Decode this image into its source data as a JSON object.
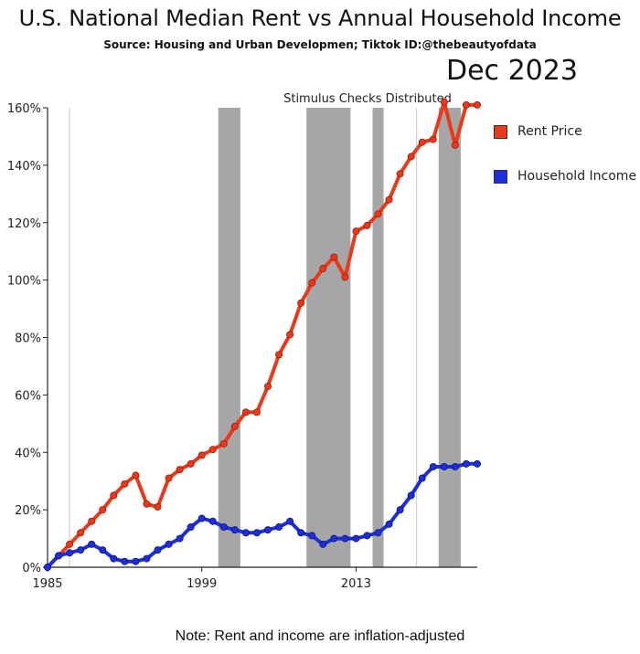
{
  "chart_data": {
    "type": "line",
    "title": "U.S. National Median Rent vs Annual Household Income",
    "subtitle": "Source: Housing and Urban Developmen;  Tiktok ID:@thebeautyofdata",
    "date_label": "Dec 2023",
    "annotation": "Stimulus Checks Distributed",
    "note": "Note: Rent and income are inflation-adjusted",
    "xlim": [
      1985,
      2024
    ],
    "ylim": [
      0,
      160
    ],
    "x_ticks": [
      1985,
      1999,
      2013
    ],
    "y_ticks": [
      0,
      20,
      40,
      60,
      80,
      100,
      120,
      140,
      160
    ],
    "y_tick_labels": [
      "0%",
      "20%",
      "40%",
      "60%",
      "80%",
      "100%",
      "120%",
      "140%",
      "160%"
    ],
    "shaded_periods": [
      [
        2000.5,
        2002.5
      ],
      [
        2008.5,
        2012.5
      ],
      [
        2014.5,
        2015.5
      ],
      [
        2020.5,
        2022.5
      ]
    ],
    "vertical_lines": [
      1987,
      2018.5
    ],
    "legend_position": "top-right",
    "series": [
      {
        "name": "Rent Price",
        "color": "#e8391a",
        "x": [
          1985,
          1986,
          1987,
          1988,
          1989,
          1990,
          1991,
          1992,
          1993,
          1994,
          1995,
          1996,
          1997,
          1998,
          1999,
          2000,
          2001,
          2002,
          2003,
          2004,
          2005,
          2006,
          2007,
          2008,
          2009,
          2010,
          2011,
          2012,
          2013,
          2014,
          2015,
          2016,
          2017,
          2018,
          2019,
          2020,
          2021,
          2022,
          2023,
          2024
        ],
        "values": [
          0,
          4,
          8,
          12,
          16,
          20,
          25,
          29,
          32,
          22,
          21,
          31,
          34,
          36,
          39,
          41,
          43,
          49,
          54,
          54,
          63,
          74,
          81,
          92,
          99,
          104,
          108,
          101,
          117,
          119,
          123,
          128,
          137,
          143,
          148,
          149,
          162,
          147,
          161,
          161
        ]
      },
      {
        "name": "Household Income",
        "color": "#1f2fd8",
        "x": [
          1985,
          1986,
          1987,
          1988,
          1989,
          1990,
          1991,
          1992,
          1993,
          1994,
          1995,
          1996,
          1997,
          1998,
          1999,
          2000,
          2001,
          2002,
          2003,
          2004,
          2005,
          2006,
          2007,
          2008,
          2009,
          2010,
          2011,
          2012,
          2013,
          2014,
          2015,
          2016,
          2017,
          2018,
          2019,
          2020,
          2021,
          2022,
          2023,
          2024
        ],
        "values": [
          0,
          4,
          5,
          6,
          8,
          6,
          3,
          2,
          2,
          3,
          6,
          8,
          10,
          14,
          17,
          16,
          14,
          13,
          12,
          12,
          13,
          14,
          16,
          12,
          11,
          8,
          10,
          10,
          10,
          11,
          12,
          15,
          20,
          25,
          31,
          35,
          35,
          35,
          36,
          36
        ]
      }
    ]
  }
}
